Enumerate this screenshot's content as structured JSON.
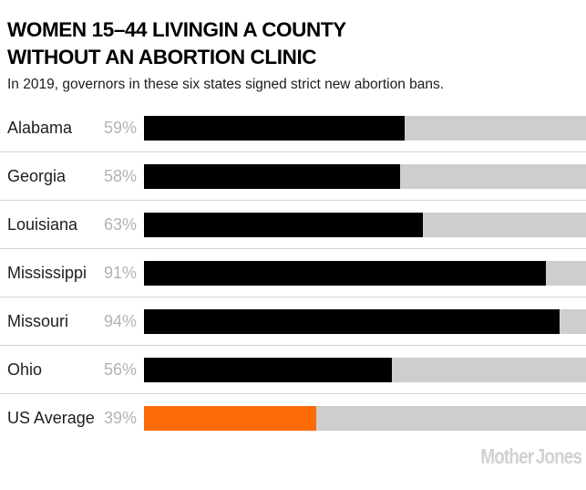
{
  "header": {
    "title_line1": "WOMEN 15–44 LIVINGIN A COUNTY",
    "title_line2": "WITHOUT AN ABORTION CLINIC",
    "subtitle": "In 2019, governors in these six states signed strict new abortion bans."
  },
  "chart_data": {
    "type": "bar",
    "orientation": "horizontal",
    "title": "WOMEN 15–44 LIVINGIN A COUNTY WITHOUT AN ABORTION CLINIC",
    "subtitle": "In 2019, governors in these six states signed strict new abortion bans.",
    "categories": [
      "Alabama",
      "Georgia",
      "Louisiana",
      "Mississippi",
      "Missouri",
      "Ohio",
      "US Average"
    ],
    "values": [
      59,
      58,
      63,
      91,
      94,
      56,
      39
    ],
    "value_labels": [
      "59%",
      "58%",
      "63%",
      "91%",
      "94%",
      "56%",
      "39%"
    ],
    "unit": "%",
    "xlim": [
      0,
      100
    ],
    "grid": false,
    "legend": false,
    "highlighted_category": "US Average",
    "bar_color_default": "#000000",
    "bar_color_highlight": "#fb6b07",
    "track_color": "#cecece"
  },
  "footer": {
    "logo_word1": "Mother",
    "logo_word2": "Jones"
  },
  "colors": {
    "bar": "#000000",
    "highlight_orange": "#fb6b07",
    "track_gray": "#cecece",
    "separator_gray": "#d4d4d4",
    "value_label_gray": "#b3b3b3",
    "logo_gray": "#d1d1d1",
    "text_black": "#1d1d1d"
  }
}
